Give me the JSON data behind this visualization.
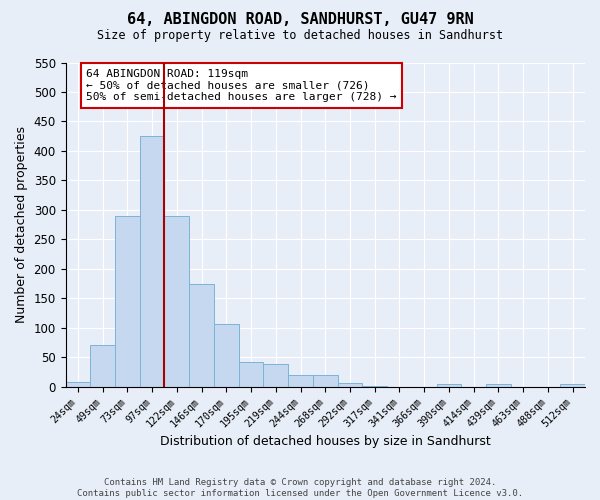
{
  "title": "64, ABINGDON ROAD, SANDHURST, GU47 9RN",
  "subtitle": "Size of property relative to detached houses in Sandhurst",
  "xlabel": "Distribution of detached houses by size in Sandhurst",
  "ylabel": "Number of detached properties",
  "bar_color": "#c5d8f0",
  "bar_edge_color": "#7ab4d8",
  "background_color": "#e8eef8",
  "grid_color": "#ffffff",
  "bin_labels": [
    "24sqm",
    "49sqm",
    "73sqm",
    "97sqm",
    "122sqm",
    "146sqm",
    "170sqm",
    "195sqm",
    "219sqm",
    "244sqm",
    "268sqm",
    "292sqm",
    "317sqm",
    "341sqm",
    "366sqm",
    "390sqm",
    "414sqm",
    "439sqm",
    "463sqm",
    "488sqm",
    "512sqm"
  ],
  "bar_heights": [
    8,
    70,
    290,
    425,
    290,
    175,
    106,
    42,
    38,
    19,
    19,
    7,
    2,
    0,
    0,
    5,
    0,
    5,
    0,
    0,
    4
  ],
  "ylim": [
    0,
    550
  ],
  "yticks": [
    0,
    50,
    100,
    150,
    200,
    250,
    300,
    350,
    400,
    450,
    500,
    550
  ],
  "vline_color": "#aa0000",
  "annotation_title": "64 ABINGDON ROAD: 119sqm",
  "annotation_line1": "← 50% of detached houses are smaller (726)",
  "annotation_line2": "50% of semi-detached houses are larger (728) →",
  "annotation_box_color": "#ffffff",
  "annotation_border_color": "#cc0000",
  "footer_line1": "Contains HM Land Registry data © Crown copyright and database right 2024.",
  "footer_line2": "Contains public sector information licensed under the Open Government Licence v3.0."
}
